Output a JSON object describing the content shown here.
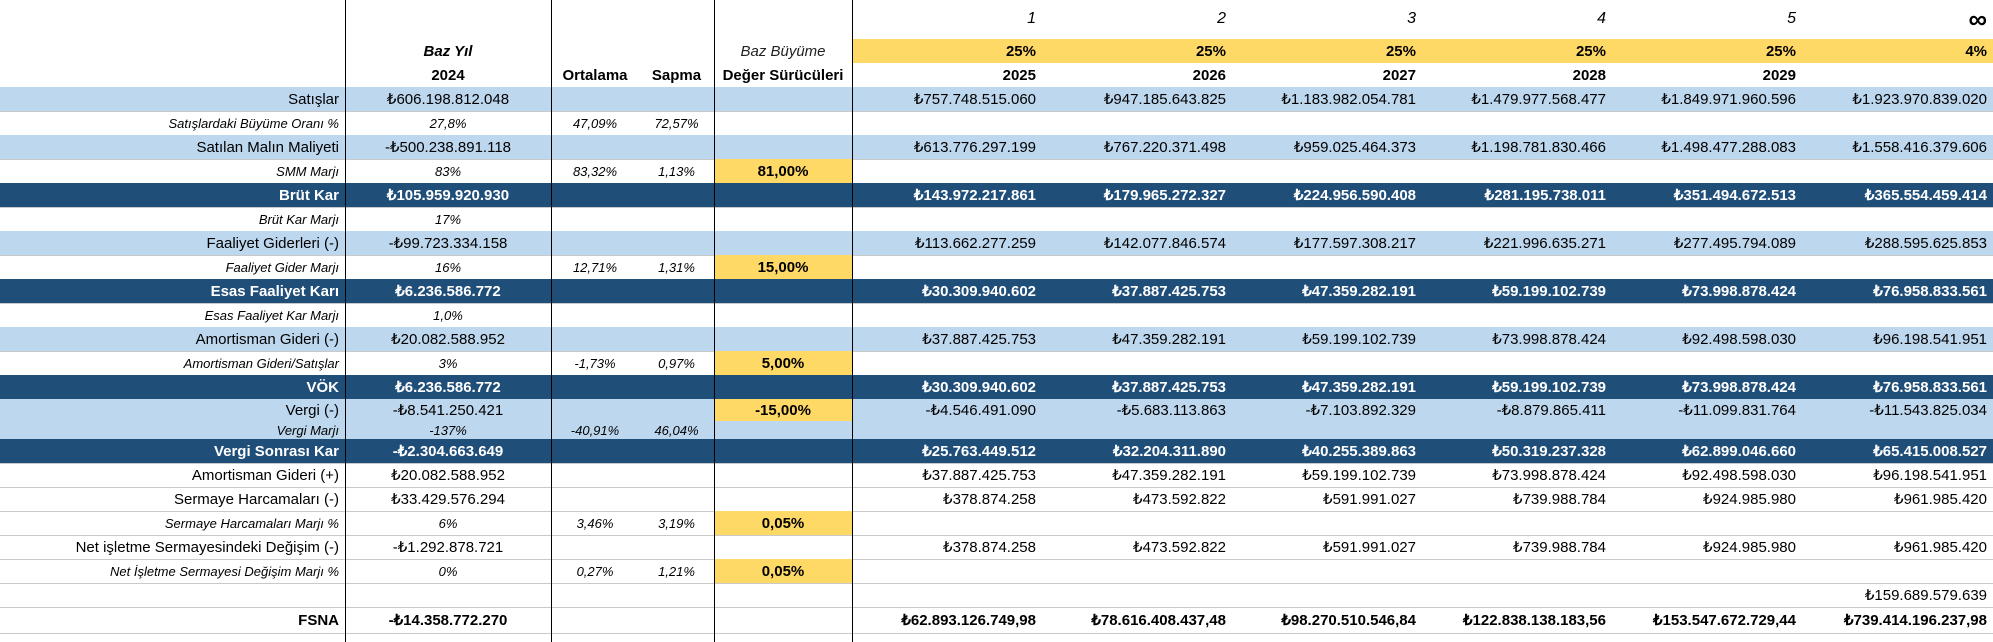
{
  "header": {
    "year_numbers": [
      "1",
      "2",
      "3",
      "4",
      "5"
    ],
    "infinity": "∞",
    "base_year_label": "Baz Yıl",
    "base_year": "2024",
    "average_label": "Ortalama",
    "deviation_label": "Sapma",
    "base_growth_label": "Baz Büyüme",
    "value_drivers_label": "Değer Sürücüleri",
    "growth_rates": [
      "25%",
      "25%",
      "25%",
      "25%",
      "25%",
      "4%"
    ],
    "years": [
      "2025",
      "2026",
      "2027",
      "2028",
      "2029",
      ""
    ]
  },
  "rows": [
    {
      "label": "Satışlar",
      "base": "₺606.198.812.048",
      "avg": "",
      "sd": "",
      "driver": "",
      "proj": [
        "₺757.748.515.060",
        "₺947.185.643.825",
        "₺1.183.982.054.781",
        "₺1.479.977.568.477",
        "₺1.849.971.960.596",
        "₺1.923.970.839.020"
      ]
    },
    {
      "label": "Satışlardaki Büyüme Oranı %",
      "base": "27,8%",
      "avg": "47,09%",
      "sd": "72,57%",
      "driver": "",
      "proj": [
        "",
        "",
        "",
        "",
        "",
        ""
      ]
    },
    {
      "label": "Satılan Malın Maliyeti",
      "base": "-₺500.238.891.118",
      "avg": "",
      "sd": "",
      "driver": "",
      "proj": [
        "₺613.776.297.199",
        "₺767.220.371.498",
        "₺959.025.464.373",
        "₺1.198.781.830.466",
        "₺1.498.477.288.083",
        "₺1.558.416.379.606"
      ]
    },
    {
      "label": "SMM Marjı",
      "base": "83%",
      "avg": "83,32%",
      "sd": "1,13%",
      "driver": "81,00%",
      "proj": [
        "",
        "",
        "",
        "",
        "",
        ""
      ]
    },
    {
      "label": "Brüt Kar",
      "base": "₺105.959.920.930",
      "avg": "",
      "sd": "",
      "driver": "",
      "proj": [
        "₺143.972.217.861",
        "₺179.965.272.327",
        "₺224.956.590.408",
        "₺281.195.738.011",
        "₺351.494.672.513",
        "₺365.554.459.414"
      ]
    },
    {
      "label": "Brüt Kar Marjı",
      "base": "17%",
      "avg": "",
      "sd": "",
      "driver": "",
      "proj": [
        "",
        "",
        "",
        "",
        "",
        ""
      ]
    },
    {
      "label": "Faaliyet Giderleri (-)",
      "base": "-₺99.723.334.158",
      "avg": "",
      "sd": "",
      "driver": "",
      "proj": [
        "₺113.662.277.259",
        "₺142.077.846.574",
        "₺177.597.308.217",
        "₺221.996.635.271",
        "₺277.495.794.089",
        "₺288.595.625.853"
      ]
    },
    {
      "label": "Faaliyet Gider Marjı",
      "base": "16%",
      "avg": "12,71%",
      "sd": "1,31%",
      "driver": "15,00%",
      "proj": [
        "",
        "",
        "",
        "",
        "",
        ""
      ]
    },
    {
      "label": "Esas Faaliyet Karı",
      "base": "₺6.236.586.772",
      "avg": "",
      "sd": "",
      "driver": "",
      "proj": [
        "₺30.309.940.602",
        "₺37.887.425.753",
        "₺47.359.282.191",
        "₺59.199.102.739",
        "₺73.998.878.424",
        "₺76.958.833.561"
      ]
    },
    {
      "label": "Esas Faaliyet Kar Marjı",
      "base": "1,0%",
      "avg": "",
      "sd": "",
      "driver": "",
      "proj": [
        "",
        "",
        "",
        "",
        "",
        ""
      ]
    },
    {
      "label": "Amortisman Gideri (-)",
      "base": "₺20.082.588.952",
      "avg": "",
      "sd": "",
      "driver": "",
      "proj": [
        "₺37.887.425.753",
        "₺47.359.282.191",
        "₺59.199.102.739",
        "₺73.998.878.424",
        "₺92.498.598.030",
        "₺96.198.541.951"
      ]
    },
    {
      "label": "Amortisman Gideri/Satışlar",
      "base": "3%",
      "avg": "-1,73%",
      "sd": "0,97%",
      "driver": "5,00%",
      "proj": [
        "",
        "",
        "",
        "",
        "",
        ""
      ]
    },
    {
      "label": "VÖK",
      "base": "₺6.236.586.772",
      "avg": "",
      "sd": "",
      "driver": "",
      "proj": [
        "₺30.309.940.602",
        "₺37.887.425.753",
        "₺47.359.282.191",
        "₺59.199.102.739",
        "₺73.998.878.424",
        "₺76.958.833.561"
      ]
    },
    {
      "label": "Vergi (-)",
      "base": "-₺8.541.250.421",
      "avg": "",
      "sd": "",
      "driver": "-15,00%",
      "proj": [
        "-₺4.546.491.090",
        "-₺5.683.113.863",
        "-₺7.103.892.329",
        "-₺8.879.865.411",
        "-₺11.099.831.764",
        "-₺11.543.825.034"
      ]
    },
    {
      "label": "Vergi Marjı",
      "base": "-137%",
      "avg": "-40,91%",
      "sd": "46,04%",
      "driver": "",
      "proj": [
        "",
        "",
        "",
        "",
        "",
        ""
      ]
    },
    {
      "label": "Vergi Sonrası Kar",
      "base": "-₺2.304.663.649",
      "avg": "",
      "sd": "",
      "driver": "",
      "proj": [
        "₺25.763.449.512",
        "₺32.204.311.890",
        "₺40.255.389.863",
        "₺50.319.237.328",
        "₺62.899.046.660",
        "₺65.415.008.527"
      ]
    },
    {
      "label": "Amortisman Gideri (+)",
      "base": "₺20.082.588.952",
      "avg": "",
      "sd": "",
      "driver": "",
      "proj": [
        "₺37.887.425.753",
        "₺47.359.282.191",
        "₺59.199.102.739",
        "₺73.998.878.424",
        "₺92.498.598.030",
        "₺96.198.541.951"
      ]
    },
    {
      "label": "Sermaye Harcamaları (-)",
      "base": "₺33.429.576.294",
      "avg": "",
      "sd": "",
      "driver": "",
      "proj": [
        "₺378.874.258",
        "₺473.592.822",
        "₺591.991.027",
        "₺739.988.784",
        "₺924.985.980",
        "₺961.985.420"
      ]
    },
    {
      "label": "Sermaye Harcamaları Marjı %",
      "base": "6%",
      "avg": "3,46%",
      "sd": "3,19%",
      "driver": "0,05%",
      "proj": [
        "",
        "",
        "",
        "",
        "",
        ""
      ]
    },
    {
      "label": "Net işletme Sermayesindeki Değişim (-)",
      "base": "-₺1.292.878.721",
      "avg": "",
      "sd": "",
      "driver": "",
      "proj": [
        "₺378.874.258",
        "₺473.592.822",
        "₺591.991.027",
        "₺739.988.784",
        "₺924.985.980",
        "₺961.985.420"
      ]
    },
    {
      "label": "Net İşletme Sermayesi Değişim Marjı %",
      "base": "0%",
      "avg": "0,27%",
      "sd": "1,21%",
      "driver": "0,05%",
      "proj": [
        "",
        "",
        "",
        "",
        "",
        ""
      ]
    },
    {
      "label": "",
      "base": "",
      "avg": "",
      "sd": "",
      "driver": "",
      "proj": [
        "",
        "",
        "",
        "",
        "",
        "₺159.689.579.639"
      ]
    },
    {
      "label": "FSNA",
      "base": "-₺14.358.772.270",
      "avg": "",
      "sd": "",
      "driver": "",
      "proj": [
        "₺62.893.126.749,98",
        "₺78.616.408.437,48",
        "₺98.270.510.546,84",
        "₺122.838.138.183,56",
        "₺153.547.672.729,44",
        "₺739.414.196.237,98"
      ]
    }
  ]
}
